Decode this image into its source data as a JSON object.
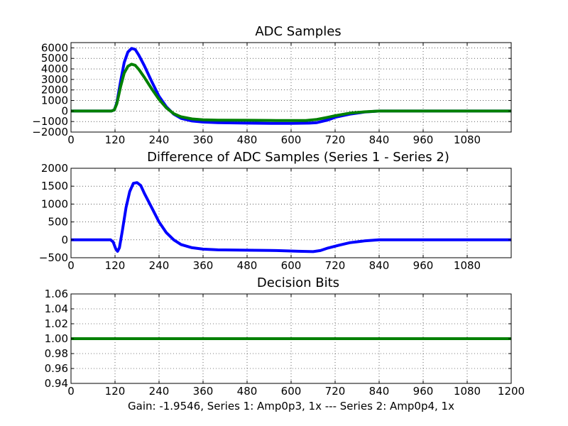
{
  "figure": {
    "xlabel": "Gain: -1.9546, Series 1: Amp0p3, 1x --- Series 2: Amp0p4, 1x"
  },
  "colors": {
    "series1": "#0000ff",
    "series2": "#008000",
    "grid": "#000000",
    "axes": "#000000"
  },
  "chart_data": [
    {
      "type": "line",
      "title": "ADC Samples",
      "xlim": [
        0,
        1200
      ],
      "ylim": [
        -2000,
        6500
      ],
      "xticks": [
        0,
        120,
        240,
        360,
        480,
        600,
        720,
        840,
        960,
        1080
      ],
      "yticks": [
        -2000,
        -1000,
        0,
        1000,
        2000,
        3000,
        4000,
        5000,
        6000
      ],
      "grid": true,
      "series": [
        {
          "color": "blue",
          "points": [
            [
              0,
              0
            ],
            [
              110,
              0
            ],
            [
              118,
              100
            ],
            [
              125,
              800
            ],
            [
              135,
              2800
            ],
            [
              145,
              4600
            ],
            [
              155,
              5600
            ],
            [
              165,
              5950
            ],
            [
              175,
              5850
            ],
            [
              185,
              5300
            ],
            [
              200,
              4300
            ],
            [
              220,
              2800
            ],
            [
              240,
              1400
            ],
            [
              260,
              400
            ],
            [
              280,
              -300
            ],
            [
              300,
              -700
            ],
            [
              330,
              -950
            ],
            [
              360,
              -1050
            ],
            [
              400,
              -1100
            ],
            [
              480,
              -1150
            ],
            [
              560,
              -1180
            ],
            [
              600,
              -1180
            ],
            [
              650,
              -1150
            ],
            [
              670,
              -1100
            ],
            [
              700,
              -850
            ],
            [
              720,
              -600
            ],
            [
              760,
              -300
            ],
            [
              800,
              -100
            ],
            [
              840,
              0
            ],
            [
              1200,
              0
            ]
          ]
        },
        {
          "color": "green",
          "points": [
            [
              0,
              0
            ],
            [
              110,
              0
            ],
            [
              118,
              100
            ],
            [
              125,
              700
            ],
            [
              135,
              2300
            ],
            [
              145,
              3600
            ],
            [
              155,
              4250
            ],
            [
              165,
              4450
            ],
            [
              175,
              4350
            ],
            [
              185,
              3950
            ],
            [
              200,
              3200
            ],
            [
              220,
              2100
            ],
            [
              240,
              1100
            ],
            [
              260,
              300
            ],
            [
              280,
              -250
            ],
            [
              300,
              -550
            ],
            [
              330,
              -750
            ],
            [
              360,
              -830
            ],
            [
              400,
              -870
            ],
            [
              480,
              -880
            ],
            [
              560,
              -900
            ],
            [
              640,
              -900
            ],
            [
              670,
              -800
            ],
            [
              700,
              -600
            ],
            [
              720,
              -450
            ],
            [
              760,
              -200
            ],
            [
              800,
              -80
            ],
            [
              840,
              0
            ],
            [
              1200,
              0
            ]
          ]
        }
      ]
    },
    {
      "type": "line",
      "title": "Difference of ADC Samples (Series 1 - Series 2)",
      "xlim": [
        0,
        1200
      ],
      "ylim": [
        -500,
        2000
      ],
      "xticks": [
        0,
        120,
        240,
        360,
        480,
        600,
        720,
        840,
        960,
        1080
      ],
      "yticks": [
        -500,
        0,
        500,
        1000,
        1500,
        2000
      ],
      "grid": true,
      "series": [
        {
          "color": "blue",
          "points": [
            [
              0,
              0
            ],
            [
              108,
              0
            ],
            [
              115,
              -60
            ],
            [
              122,
              -250
            ],
            [
              127,
              -320
            ],
            [
              132,
              -220
            ],
            [
              140,
              250
            ],
            [
              150,
              900
            ],
            [
              160,
              1350
            ],
            [
              170,
              1580
            ],
            [
              180,
              1600
            ],
            [
              190,
              1520
            ],
            [
              200,
              1300
            ],
            [
              220,
              900
            ],
            [
              240,
              500
            ],
            [
              260,
              200
            ],
            [
              280,
              0
            ],
            [
              300,
              -130
            ],
            [
              330,
              -220
            ],
            [
              360,
              -260
            ],
            [
              400,
              -280
            ],
            [
              480,
              -290
            ],
            [
              560,
              -300
            ],
            [
              620,
              -320
            ],
            [
              660,
              -330
            ],
            [
              680,
              -300
            ],
            [
              700,
              -230
            ],
            [
              730,
              -150
            ],
            [
              760,
              -80
            ],
            [
              800,
              -30
            ],
            [
              840,
              0
            ],
            [
              1200,
              0
            ]
          ]
        }
      ]
    },
    {
      "type": "line",
      "title": "Decision Bits",
      "xlim": [
        0,
        1200
      ],
      "ylim": [
        0.94,
        1.06
      ],
      "xticks": [
        0,
        120,
        240,
        360,
        480,
        600,
        720,
        840,
        960,
        1080,
        1200
      ],
      "yticks": [
        0.94,
        0.96,
        0.98,
        1.0,
        1.02,
        1.04,
        1.06
      ],
      "ytick_labels": [
        "0.94",
        "0.96",
        "0.98",
        "1.00",
        "1.02",
        "1.04",
        "1.06"
      ],
      "grid": true,
      "series": [
        {
          "color": "green",
          "points": [
            [
              0,
              1.0
            ],
            [
              1200,
              1.0
            ]
          ]
        }
      ]
    }
  ]
}
